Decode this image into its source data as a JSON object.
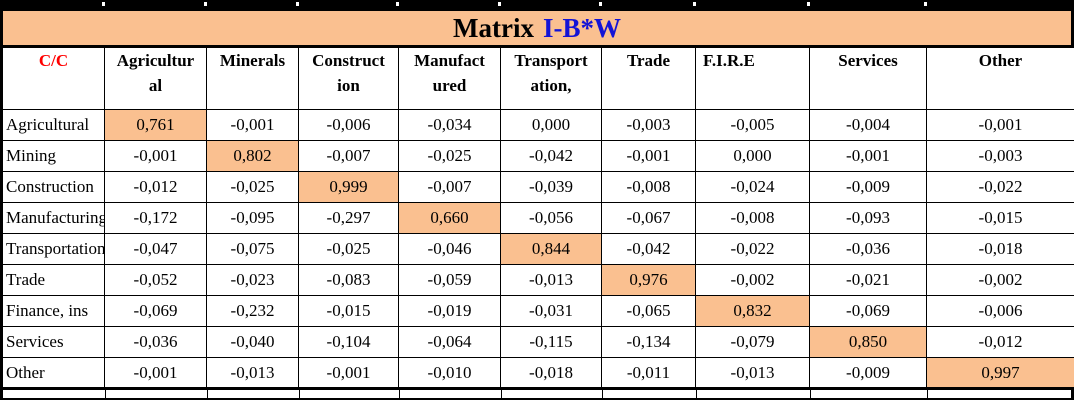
{
  "title": {
    "prefix": "Matrix",
    "matrix_name": "I-B*W"
  },
  "colors": {
    "band_and_diagonal_highlight": "#FAC090",
    "title_name_blue": "#1313D6",
    "corner_label_red": "#FF0000",
    "grid": "#000000"
  },
  "table": {
    "corner_label": "C/C",
    "columns": [
      {
        "lines": [
          "Agricultur",
          "al"
        ]
      },
      {
        "lines": [
          "Minerals"
        ]
      },
      {
        "lines": [
          "Construct",
          "ion"
        ]
      },
      {
        "lines": [
          "Manufact",
          "ured"
        ]
      },
      {
        "lines": [
          "Transport",
          "ation,"
        ]
      },
      {
        "lines": [
          "Trade"
        ]
      },
      {
        "lines": [
          "F.I.R.E"
        ]
      },
      {
        "lines": [
          "Services"
        ]
      },
      {
        "lines": [
          "Other"
        ]
      }
    ],
    "rows": [
      {
        "label": "Agricultural",
        "highlight_col": 0,
        "values": [
          "0,761",
          "-0,001",
          "-0,006",
          "-0,034",
          "0,000",
          "-0,003",
          "-0,005",
          "-0,004",
          "-0,001"
        ]
      },
      {
        "label": "Mining",
        "highlight_col": 1,
        "values": [
          "-0,001",
          "0,802",
          "-0,007",
          "-0,025",
          "-0,042",
          "-0,001",
          "0,000",
          "-0,001",
          "-0,003"
        ]
      },
      {
        "label": "Construction",
        "highlight_col": 2,
        "values": [
          "-0,012",
          "-0,025",
          "0,999",
          "-0,007",
          "-0,039",
          "-0,008",
          "-0,024",
          "-0,009",
          "-0,022"
        ]
      },
      {
        "label": "Manufacturing",
        "highlight_col": 3,
        "values": [
          "-0,172",
          "-0,095",
          "-0,297",
          "0,660",
          "-0,056",
          "-0,067",
          "-0,008",
          "-0,093",
          "-0,015"
        ]
      },
      {
        "label": "Transportation",
        "highlight_col": 4,
        "values": [
          "-0,047",
          "-0,075",
          "-0,025",
          "-0,046",
          "0,844",
          "-0,042",
          "-0,022",
          "-0,036",
          "-0,018"
        ]
      },
      {
        "label": "Trade",
        "highlight_col": 5,
        "values": [
          "-0,052",
          "-0,023",
          "-0,083",
          "-0,059",
          "-0,013",
          "0,976",
          "-0,002",
          "-0,021",
          "-0,002"
        ]
      },
      {
        "label": "Finance, ins",
        "highlight_col": 6,
        "values": [
          "-0,069",
          "-0,232",
          "-0,015",
          "-0,019",
          "-0,031",
          "-0,065",
          "0,832",
          "-0,069",
          "-0,006"
        ]
      },
      {
        "label": "Services",
        "highlight_col": 7,
        "values": [
          "-0,036",
          "-0,040",
          "-0,104",
          "-0,064",
          "-0,115",
          "-0,134",
          "-0,079",
          "0,850",
          "-0,012"
        ]
      },
      {
        "label": "Other",
        "highlight_col": 8,
        "values": [
          "-0,001",
          "-0,013",
          "-0,001",
          "-0,010",
          "-0,018",
          "-0,011",
          "-0,013",
          "-0,009",
          "0,997"
        ]
      }
    ]
  }
}
